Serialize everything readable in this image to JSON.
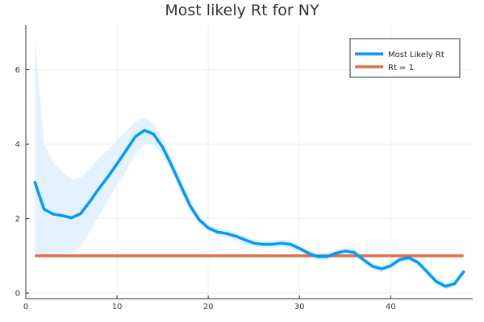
{
  "chart_data": {
    "type": "line",
    "title": "Most likely Rt for NY",
    "xlabel": "",
    "ylabel": "",
    "xlim": [
      0,
      49
    ],
    "ylim": [
      -0.15,
      7.2
    ],
    "x_ticks": [
      0,
      10,
      20,
      30,
      40
    ],
    "y_ticks": [
      0,
      2,
      4,
      6
    ],
    "grid": true,
    "legend_position": "top-right",
    "colors": {
      "most_likely": "#009AFA",
      "band": "#E3F2FE",
      "rt_one": "#E26F46",
      "axis": "#333333",
      "grid": "#EBEBEB"
    },
    "x": [
      1,
      2,
      3,
      4,
      5,
      6,
      7,
      8,
      9,
      10,
      11,
      12,
      13,
      14,
      15,
      16,
      17,
      18,
      19,
      20,
      21,
      22,
      23,
      24,
      25,
      26,
      27,
      28,
      29,
      30,
      31,
      32,
      33,
      34,
      35,
      36,
      37,
      38,
      39,
      40,
      41,
      42,
      43,
      44,
      45,
      46,
      47,
      48
    ],
    "series": [
      {
        "name": "Most Likely Rt",
        "values": [
          2.97,
          2.25,
          2.12,
          2.08,
          2.02,
          2.13,
          2.45,
          2.8,
          3.12,
          3.47,
          3.83,
          4.2,
          4.37,
          4.27,
          3.92,
          3.42,
          2.88,
          2.35,
          1.97,
          1.75,
          1.64,
          1.6,
          1.53,
          1.43,
          1.34,
          1.31,
          1.31,
          1.34,
          1.31,
          1.2,
          1.07,
          0.98,
          0.98,
          1.07,
          1.13,
          1.09,
          0.9,
          0.72,
          0.65,
          0.73,
          0.9,
          0.95,
          0.82,
          0.57,
          0.31,
          0.18,
          0.25,
          0.57
        ],
        "lower": [
          1.05,
          1.02,
          1.02,
          1.03,
          1.05,
          1.25,
          1.65,
          2.05,
          2.5,
          2.9,
          3.3,
          3.7,
          4.0,
          4.0,
          3.7,
          3.22,
          2.7,
          2.2,
          1.85,
          1.65,
          1.55,
          1.5,
          1.43,
          1.33,
          1.24,
          1.21,
          1.21,
          1.24,
          1.21,
          1.1,
          0.97,
          0.88,
          0.88,
          0.97,
          1.03,
          0.99,
          0.8,
          0.62,
          0.55,
          0.63,
          0.8,
          0.85,
          0.72,
          0.47,
          0.21,
          0.1,
          0.15,
          0.45
        ],
        "upper": [
          6.85,
          4.0,
          3.5,
          3.25,
          3.05,
          3.1,
          3.35,
          3.6,
          3.85,
          4.1,
          4.35,
          4.6,
          4.72,
          4.55,
          4.15,
          3.62,
          3.06,
          2.52,
          2.1,
          1.86,
          1.74,
          1.7,
          1.63,
          1.53,
          1.44,
          1.41,
          1.41,
          1.44,
          1.41,
          1.3,
          1.17,
          1.08,
          1.08,
          1.17,
          1.23,
          1.19,
          1.0,
          0.82,
          0.75,
          0.83,
          1.0,
          1.05,
          0.92,
          0.67,
          0.41,
          0.28,
          0.35,
          0.7
        ]
      },
      {
        "name": "Rt = 1",
        "x": [
          1,
          48
        ],
        "values": [
          1,
          1
        ]
      }
    ]
  }
}
